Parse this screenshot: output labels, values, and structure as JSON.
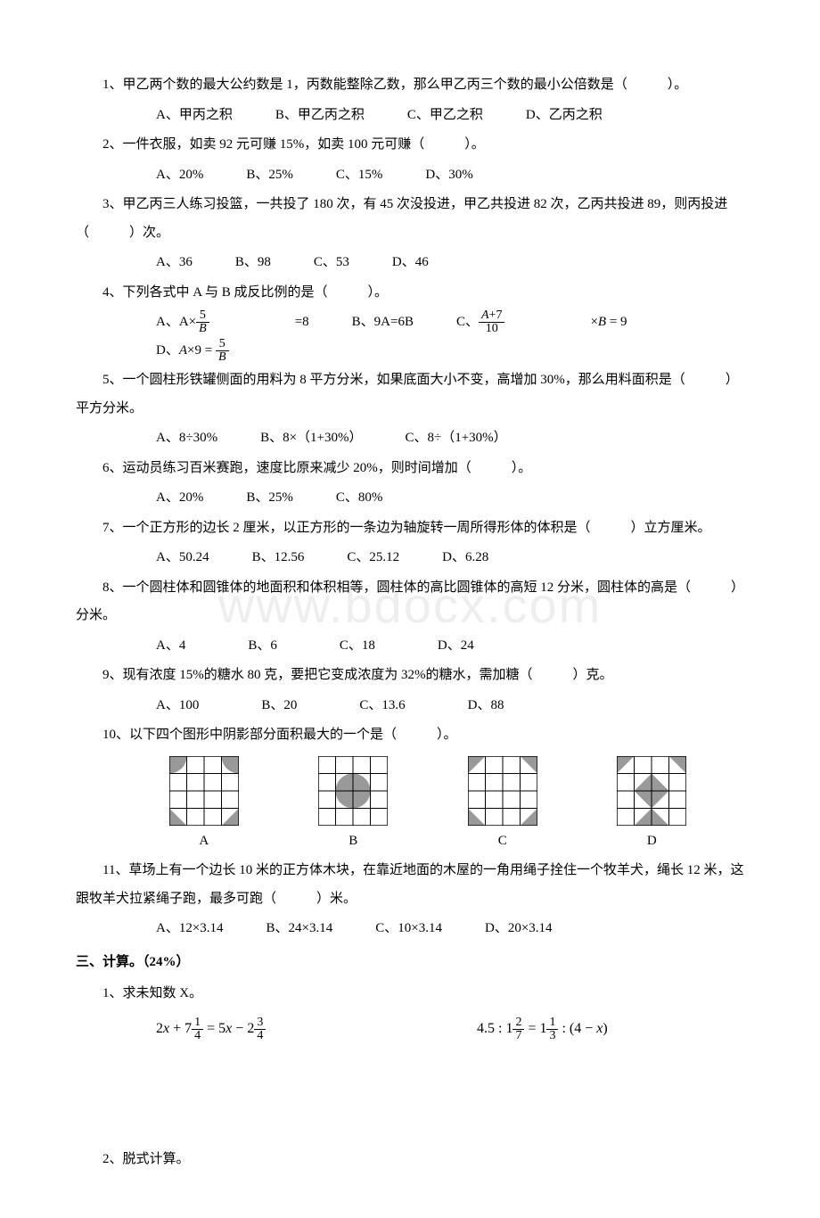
{
  "watermark": "www.bdocx.com",
  "questions": [
    {
      "n": "1",
      "text": "、甲乙两个数的最大公约数是 1，丙数能整除乙数，那么甲乙丙三个数的最小公倍数是（　　　）。",
      "opts": [
        "A、甲丙之积",
        "B、甲乙丙之积",
        "C、甲乙之积",
        "D、乙丙之积"
      ]
    },
    {
      "n": "2",
      "text": "、一件衣服，如卖 92 元可赚 15%，如卖 100 元可赚（　　　）。",
      "opts": [
        "A、20%",
        "B、25%",
        "C、15%",
        "D、30%"
      ]
    },
    {
      "n": "3",
      "text": "、甲乙丙三人练习投篮，一共投了 180 次，有 45 次没投进，甲乙共投进 82 次，乙丙共投进 89，则丙投进（　　　）次。",
      "opts": [
        "A、36",
        "B、98",
        "C、53",
        "D、46"
      ],
      "wrap": true
    },
    {
      "n": "4",
      "text": "、下列各式中 A 与 B 成反比例的是（　　　）。",
      "fracOpts": true
    },
    {
      "n": "5",
      "text": "、一个圆柱形铁罐侧面的用料为 8 平方分米，如果底面大小不变，高增加 30%，那么用料面积是（　　　）平方分米。",
      "opts": [
        "A、8÷30%",
        "B、8×（1+30%）",
        "C、8÷（1+30%）"
      ],
      "wrap": true
    },
    {
      "n": "6",
      "text": "、运动员练习百米赛跑，速度比原来减少 20%，则时间增加（　　　）。",
      "opts": [
        "A、20%",
        "B、25%",
        "C、80%"
      ]
    },
    {
      "n": "7",
      "text": "、一个正方形的边长 2 厘米，以正方形的一条边为轴旋转一周所得形体的体积是（　　　）立方厘米。",
      "opts": [
        "A、50.24",
        "B、12.56",
        "C、25.12",
        "D、6.28"
      ]
    },
    {
      "n": "8",
      "text": "、一个圆柱体和圆锥体的地面积和体积相等，圆柱体的高比圆锥体的高短 12 分米，圆柱体的高是（　　　）分米。",
      "opts": [
        "A、4",
        "B、6",
        "C、18",
        "D、24"
      ],
      "wrap": true,
      "narrow": true
    },
    {
      "n": "9",
      "text": "、现有浓度 15%的糖水 80 克，要把它变成浓度为 32%的糖水，需加糖（　　　）克。",
      "opts": [
        "A、100",
        "B、20",
        "C、13.6",
        "D、88"
      ],
      "narrow": true
    },
    {
      "n": "10",
      "text": "、以下四个图形中阴影部分面积最大的一个是（　　　）。",
      "hasFigs": true
    },
    {
      "n": "11",
      "text": "、草场上有一个边长 10 米的正方体木块，在靠近地面的木屋的一角用绳子拴住一个牧羊犬，绳长 12 米，这跟牧羊犬拉紧绳子跑，最多可跑（　　　）米。",
      "opts": [
        "A、12×3.14",
        "B、24×3.14",
        "C、10×3.14",
        "D、20×3.14"
      ],
      "wrap": true
    }
  ],
  "section3": "三、计算。（24%）",
  "sub1": "1、求未知数 X。",
  "sub2": "2、脱式计算。",
  "figColors": {
    "stroke": "#000",
    "fill": "#999"
  },
  "figLabels": [
    "A",
    "B",
    "C",
    "D"
  ]
}
